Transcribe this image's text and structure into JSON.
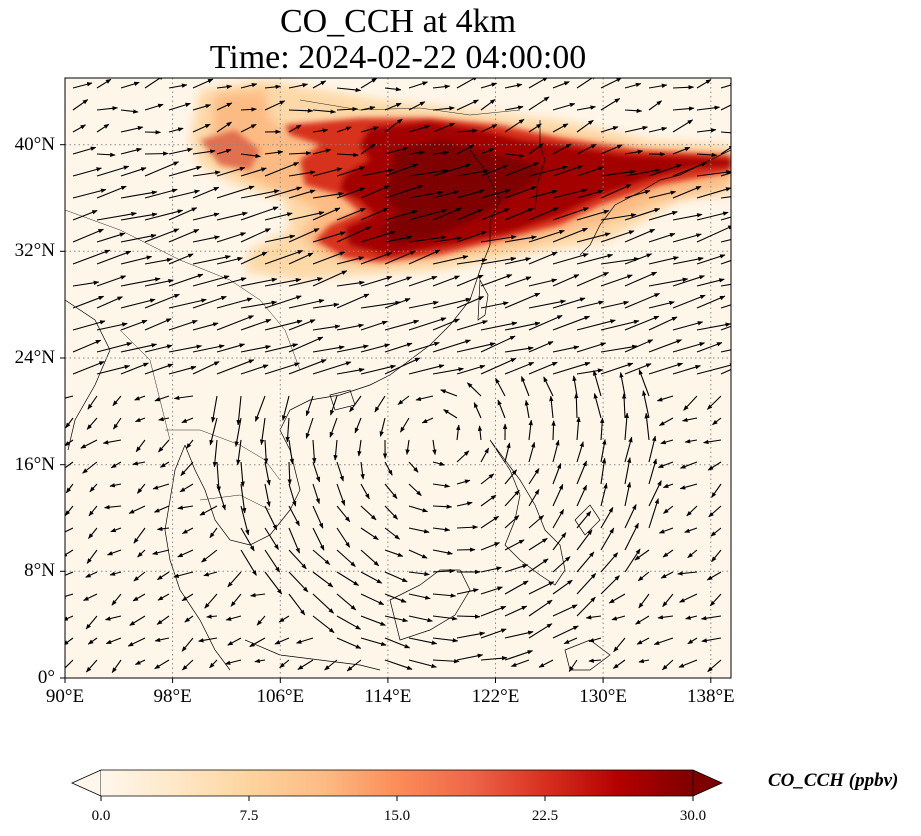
{
  "title_line1": "CO_CCH at 4km",
  "title_line2": "Time: 2024-02-22 04:00:00",
  "map": {
    "projection": "PlateCarree",
    "extent": {
      "lon_min": 90,
      "lon_max": 139.5,
      "lat_min": 0,
      "lat_max": 45
    },
    "lat_gridlines": [
      0,
      8,
      16,
      24,
      32,
      40
    ],
    "lon_gridlines": [
      90,
      98,
      106,
      114,
      122,
      130,
      138
    ],
    "lat_labels": [
      "0°",
      "8°N",
      "16°N",
      "24°N",
      "32°N",
      "40°N"
    ],
    "lon_labels": [
      "90°E",
      "98°E",
      "106°E",
      "114°E",
      "122°E",
      "130°E",
      "138°E"
    ],
    "gridline_style": "dotted",
    "field": "CO_CCH",
    "plume_description": "High CO_CCH plume over northern and eastern China (approx. 31–42°N, 103–139°E), peaking above 30 ppbv; elsewhere near 0",
    "wind_vectors": "quiver arrows showing westerly jet 24–36°N and anticyclonic circulation over South China Sea"
  },
  "colorbar": {
    "label": "CO_CCH (ppbv)",
    "colormap": "OrRd",
    "ticks": [
      "0.0",
      "7.5",
      "15.0",
      "22.5",
      "30.0"
    ],
    "min": 0,
    "max": 30,
    "extend": "both",
    "colors": [
      "#fff7ec",
      "#fee8c8",
      "#fdd49e",
      "#fdbb84",
      "#fc8d59",
      "#ef6548",
      "#d7301f",
      "#b30000",
      "#7f0000"
    ]
  }
}
